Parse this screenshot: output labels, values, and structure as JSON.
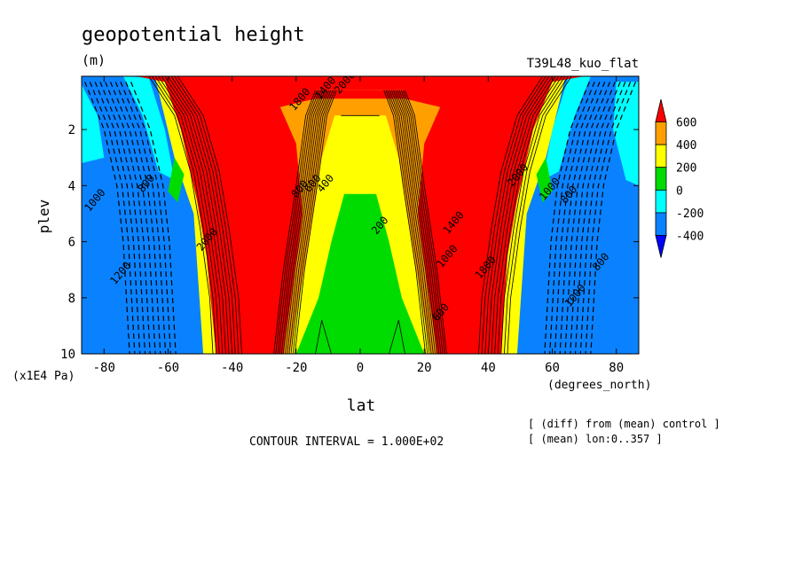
{
  "chart_data": {
    "type": "heatmap",
    "title": "geopotential height",
    "units": "(m)",
    "run_label": "T39L48_kuo_flat",
    "xlabel": "lat",
    "x_units": "(degrees_north)",
    "ylabel": "plev",
    "y_units": "(x1E4 Pa)",
    "xlim": [
      -87,
      87
    ],
    "ylim": [
      10,
      0.1
    ],
    "x_ticks": [
      -80,
      -60,
      -40,
      -20,
      0,
      20,
      40,
      60,
      80
    ],
    "x_tick_labels": [
      "-80",
      "-60",
      "-40",
      "-20",
      "0",
      "20",
      "40",
      "60",
      "80"
    ],
    "y_ticks": [
      2,
      4,
      6,
      8,
      10
    ],
    "y_tick_labels": [
      "2",
      "4",
      "6",
      "8",
      "10"
    ],
    "contour_interval_text": "CONTOUR INTERVAL = 1.000E+02",
    "notes": [
      "[ (diff) from (mean) control ]",
      "[ (mean) lon:0..357 ]"
    ],
    "colorbar": {
      "levels": [
        -400,
        -200,
        0,
        200,
        400,
        600
      ],
      "labels": [
        "-400",
        "-200",
        "0",
        "200",
        "400",
        "600"
      ],
      "colors": [
        "#0000ff",
        "#0a82ff",
        "#00ffff",
        "#00dc00",
        "#ffff00",
        "#ffa000",
        "#ff0000"
      ]
    },
    "contour_labels": [
      {
        "text": "1000",
        "lat": -82,
        "plev": 4.6
      },
      {
        "text": "1200",
        "lat": -74,
        "plev": 7.2
      },
      {
        "text": "800",
        "lat": -66,
        "plev": 4.0
      },
      {
        "text": "2000",
        "lat": -47,
        "plev": 6.0
      },
      {
        "text": "2000",
        "lat": -4,
        "plev": 0.4
      },
      {
        "text": "1400",
        "lat": -10,
        "plev": 0.6
      },
      {
        "text": "1800",
        "lat": -18,
        "plev": 1.0
      },
      {
        "text": "800",
        "lat": -18,
        "plev": 4.2
      },
      {
        "text": "600",
        "lat": -14,
        "plev": 4.0
      },
      {
        "text": "400",
        "lat": -10,
        "plev": 4.0
      },
      {
        "text": "200",
        "lat": 7,
        "plev": 5.5
      },
      {
        "text": "600",
        "lat": 26,
        "plev": 8.6
      },
      {
        "text": "1000",
        "lat": 28,
        "plev": 6.6
      },
      {
        "text": "1400",
        "lat": 30,
        "plev": 5.4
      },
      {
        "text": "1800",
        "lat": 40,
        "plev": 7.0
      },
      {
        "text": "2000",
        "lat": 50,
        "plev": 3.7
      },
      {
        "text": "1000",
        "lat": 60,
        "plev": 4.2
      },
      {
        "text": "800",
        "lat": 66,
        "plev": 4.4
      },
      {
        "text": "800",
        "lat": 76,
        "plev": 6.8
      },
      {
        "text": "1000",
        "lat": 68,
        "plev": 8.0
      }
    ]
  }
}
